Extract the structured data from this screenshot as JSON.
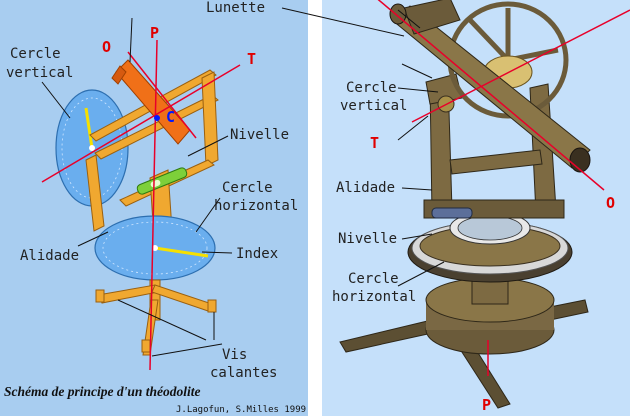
{
  "left_panel": {
    "labels": {
      "o": "O",
      "p": "P",
      "t": "T",
      "c": "C",
      "cercle_vertical_1": "Cercle",
      "cercle_vertical_2": "vertical",
      "nivelle": "Nivelle",
      "cercle_horizontal_1": "Cercle",
      "cercle_horizontal_2": "horizontal",
      "index": "Index",
      "alidade": "Alidade",
      "vis_calantes_1": "Vis",
      "vis_calantes_2": "calantes"
    },
    "caption": "Schéma de principe d'un théodolite",
    "credit": "J.Lagofun, S.Milles 1999"
  },
  "right_panel": {
    "labels": {
      "lunette": "Lunette",
      "cercle_vertical_1": "Cercle",
      "cercle_vertical_2": "vertical",
      "t": "T",
      "alidade": "Alidade",
      "nivelle": "Nivelle",
      "cercle_horizontal_1": "Cercle",
      "cercle_horizontal_2": "horizontal",
      "o": "O",
      "p": "P"
    }
  },
  "colors": {
    "left_background": "#a8cdf0",
    "right_background": "#c5e0fa",
    "frame_orange": "#f0a830",
    "telescope_orange": "#f07018",
    "disc_blue": "#6aaeee",
    "axis_red": "#e8002a",
    "instrument_bronze": "#8a7440"
  }
}
